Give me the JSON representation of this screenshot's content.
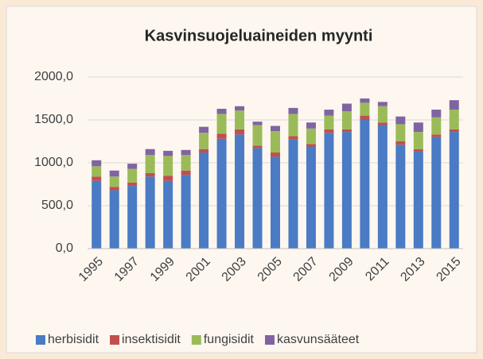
{
  "chart_data": {
    "type": "stacked_bar",
    "title": "Kasvinsuojeluaineiden myynti",
    "categories": [
      "1995",
      null,
      "1997",
      null,
      "1999",
      null,
      "2001",
      null,
      "2003",
      null,
      "2005",
      null,
      "2007",
      null,
      "2009",
      null,
      "2011",
      null,
      "2013",
      null,
      "2015"
    ],
    "series": [
      {
        "name": "herbisidit",
        "color": "#4a7bc4",
        "values": [
          790,
          680,
          730,
          840,
          790,
          860,
          1120,
          1280,
          1330,
          1170,
          1070,
          1270,
          1190,
          1350,
          1360,
          1500,
          1440,
          1210,
          1130,
          1300,
          1360
        ]
      },
      {
        "name": "insektisidit",
        "color": "#c0504d",
        "values": [
          50,
          40,
          40,
          40,
          60,
          50,
          40,
          60,
          60,
          30,
          50,
          40,
          30,
          40,
          30,
          50,
          30,
          40,
          30,
          30,
          30
        ]
      },
      {
        "name": "fungisidit",
        "color": "#9bbb59",
        "values": [
          120,
          120,
          160,
          210,
          230,
          180,
          190,
          230,
          220,
          240,
          250,
          260,
          180,
          160,
          210,
          150,
          190,
          200,
          200,
          200,
          230
        ]
      },
      {
        "name": "kasvunsääteet",
        "color": "#8064a2",
        "values": [
          70,
          70,
          60,
          70,
          60,
          60,
          70,
          60,
          50,
          40,
          60,
          70,
          70,
          70,
          90,
          50,
          50,
          90,
          110,
          90,
          110
        ]
      }
    ],
    "ylim": [
      0,
      2000
    ],
    "yticks": [
      {
        "value": 0,
        "label": "0,0"
      },
      {
        "value": 500,
        "label": "500,0"
      },
      {
        "value": 1000,
        "label": "1000,0"
      },
      {
        "value": 1500,
        "label": "1500,0"
      },
      {
        "value": 2000,
        "label": "2000,0"
      }
    ],
    "grid": true,
    "legend": "bottom"
  }
}
